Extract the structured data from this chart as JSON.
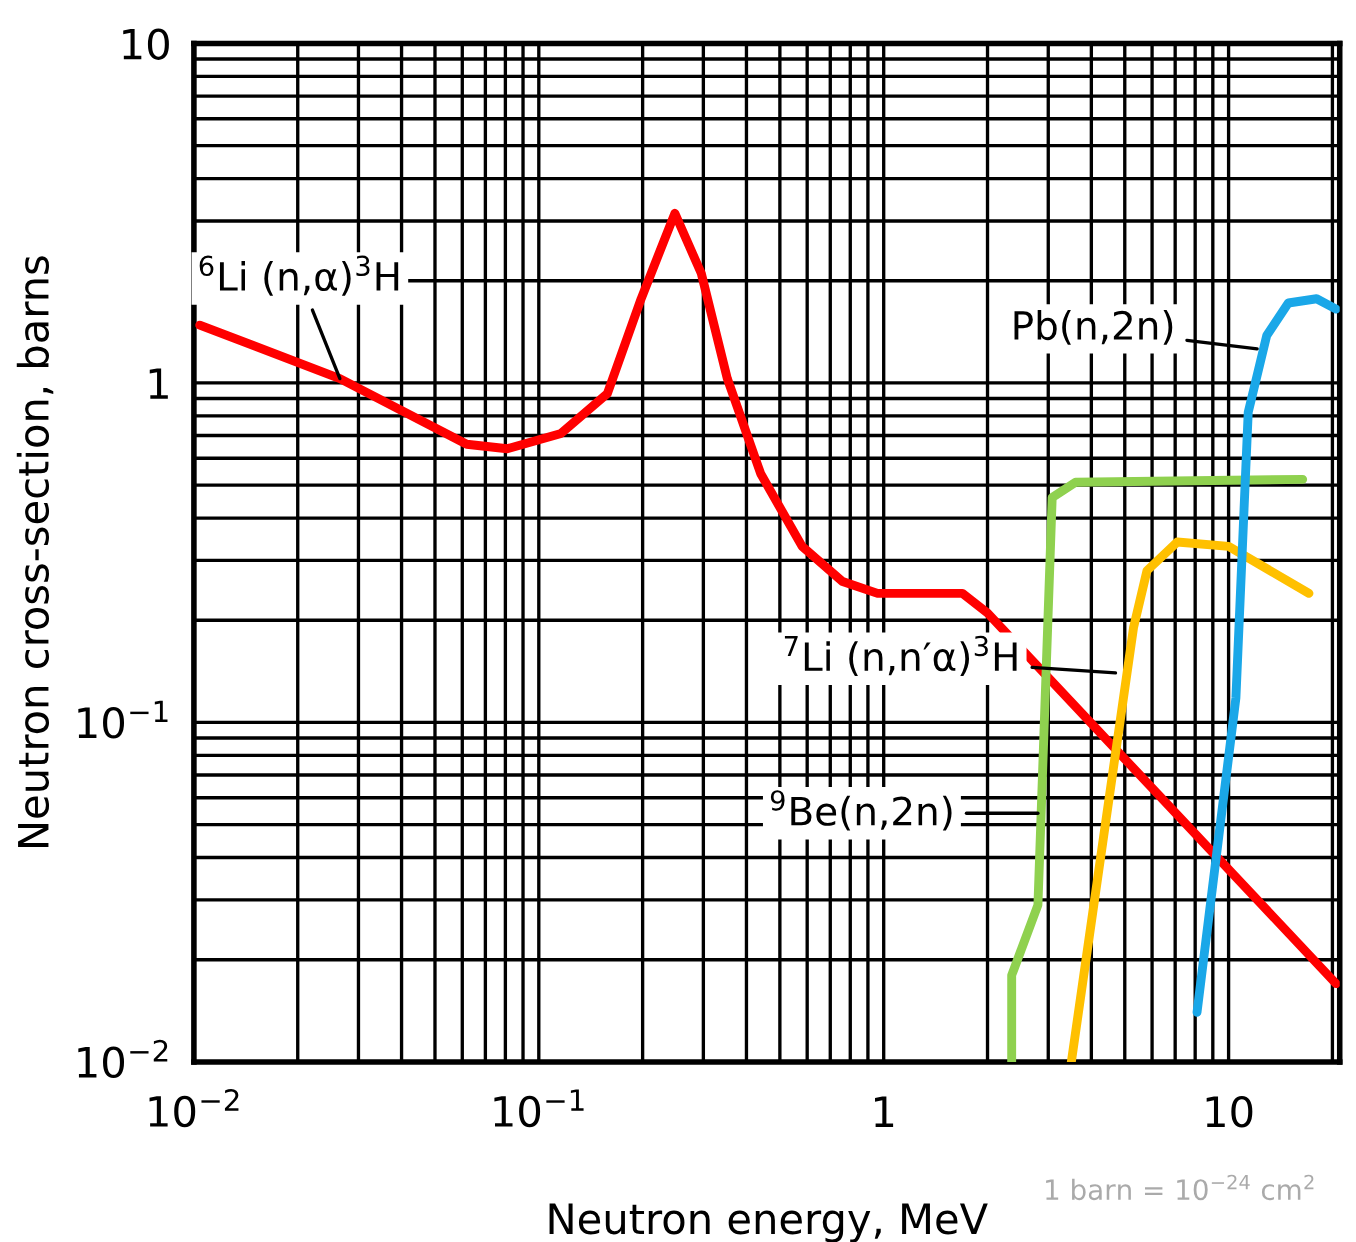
{
  "chart_data": {
    "type": "line",
    "xlabel": "Neutron energy, MeV",
    "ylabel": "Neutron cross-section, barns",
    "log": "xy",
    "grid": true,
    "line_style": "solid",
    "marker": "none",
    "xlim": [
      0.01,
      21
    ],
    "ylim": [
      0.01,
      10
    ],
    "xticks": [
      {
        "value": 0.01,
        "label": "10$^{−2}$"
      },
      {
        "value": 0.1,
        "label": "10$^{−1}$"
      },
      1,
      10
    ],
    "yticks": [
      {
        "value": 0.01,
        "label": "10$^{−2}$"
      },
      {
        "value": 0.1,
        "label": "10$^{−1}$"
      },
      1,
      10
    ],
    "series": [
      {
        "color": "#ff0000",
        "x": [
          0.0104,
          0.0265,
          0.0618,
          0.081,
          0.116,
          0.158,
          0.198,
          0.248,
          0.296,
          0.352,
          0.44,
          0.58,
          0.76,
          0.96,
          1.69,
          2.0,
          20.5
        ],
        "values": [
          1.48,
          1.03,
          0.66,
          0.64,
          0.71,
          0.93,
          1.77,
          3.16,
          2.1,
          1.03,
          0.54,
          0.33,
          0.26,
          0.24,
          0.24,
          0.21,
          0.017
        ]
      },
      {
        "color": "#8fd14f",
        "x": [
          2.35,
          2.35,
          2.8,
          3.08,
          3.6,
          16.4
        ],
        "values": [
          0.01,
          0.018,
          0.029,
          0.46,
          0.51,
          0.52
        ]
      },
      {
        "color": "#ffc000",
        "x": [
          3.5,
          5.3,
          5.8,
          7.1,
          10,
          17.1
        ],
        "values": [
          0.01,
          0.19,
          0.28,
          0.34,
          0.33,
          0.24
        ]
      },
      {
        "color": "#1aa7e8",
        "x": [
          8.1,
          10.5,
          11.4,
          12.9,
          14.9,
          18,
          20.5
        ],
        "values": [
          0.014,
          0.118,
          0.82,
          1.38,
          1.72,
          1.77,
          1.65
        ]
      }
    ],
    "annotations": [
      {
        "text": "$^{6}$Li (n,α)$^{3}$H",
        "x": 0.0265,
        "y": 1.03
      },
      {
        "text": "$^{7}$Li (n,n′α)$^{3}$H",
        "x": 4.7,
        "y": 0.14
      },
      {
        "text": "$^{9}$Be(n,2n)",
        "x": 2.8,
        "y": 0.054
      },
      {
        "text": "Pb(n,2n)",
        "x": 12.1,
        "y": 1.26
      },
      "1 barn = 10$^{−24}$ cm$^{2}$"
    ]
  }
}
